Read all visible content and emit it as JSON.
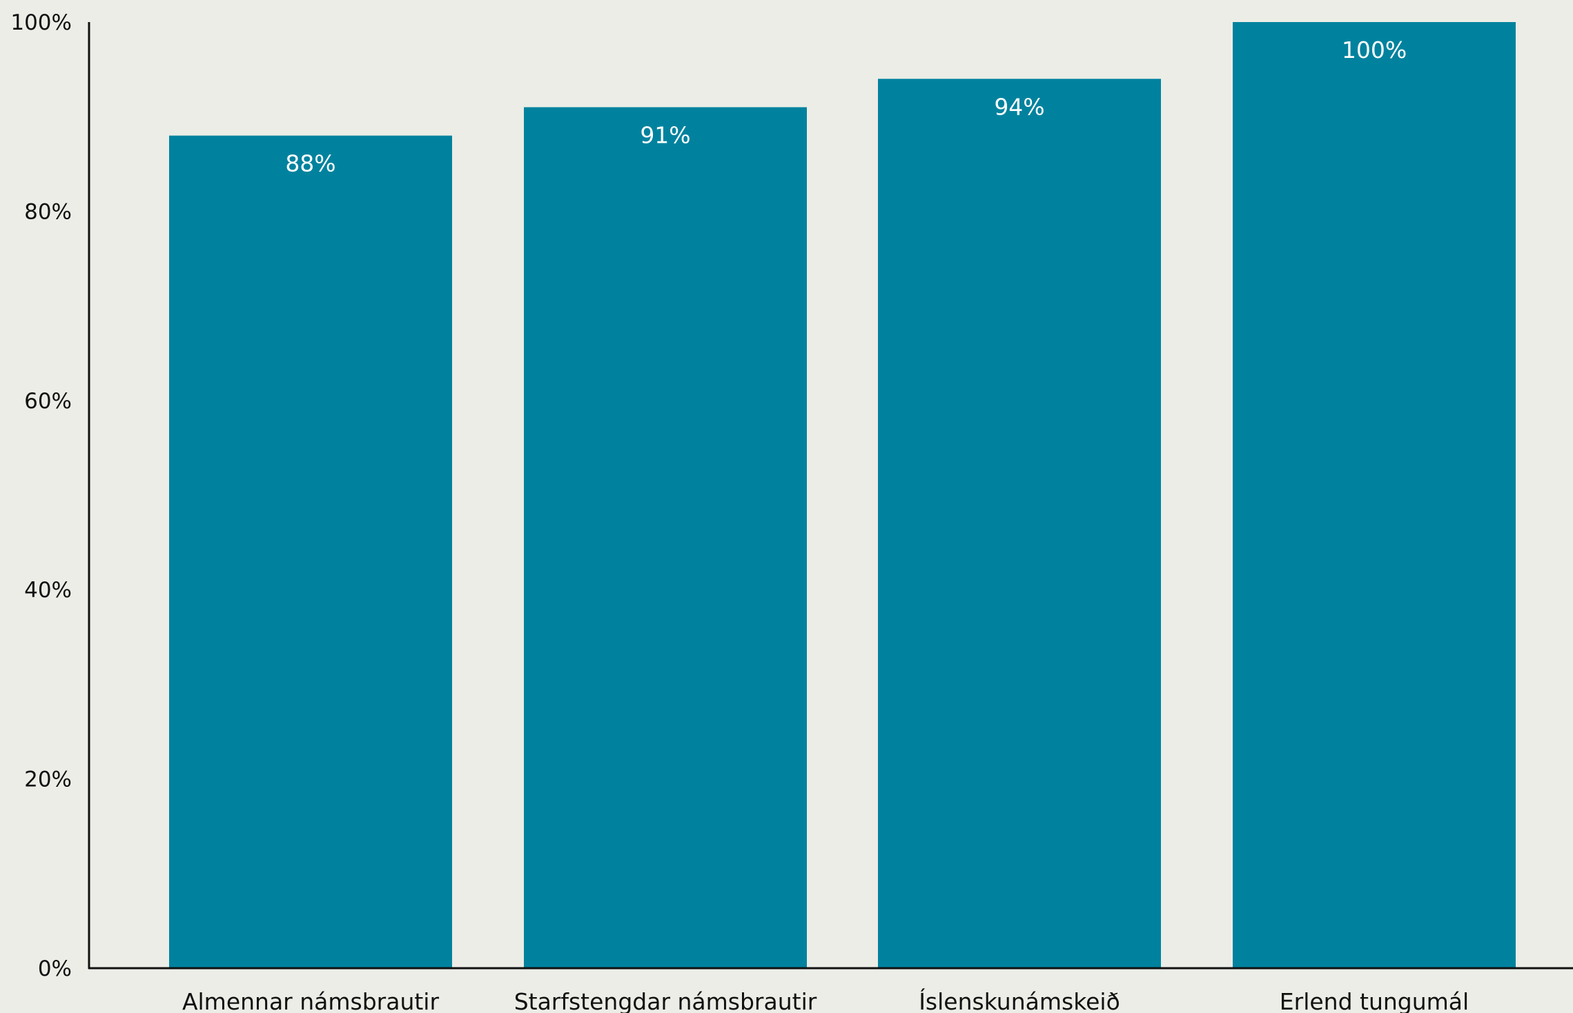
{
  "colors": {
    "background": "#ebede6",
    "bar": "#00829e",
    "axis": "#111111",
    "data_label": "#ffffff"
  },
  "chart_data": {
    "type": "bar",
    "categories": [
      "Almennar námsbrautir",
      "Starfstengdar námsbrautir",
      "Íslenskunámskeið",
      "Erlend tungumál"
    ],
    "values": [
      88,
      91,
      94,
      100
    ],
    "data_labels": [
      "88%",
      "91%",
      "94%",
      "100%"
    ],
    "yticks": [
      0,
      20,
      40,
      60,
      80,
      100
    ],
    "ytick_labels": [
      "0%",
      "20%",
      "40%",
      "60%",
      "80%",
      "100%"
    ],
    "ylim": [
      0,
      100
    ],
    "grid": false,
    "legend": "none"
  }
}
